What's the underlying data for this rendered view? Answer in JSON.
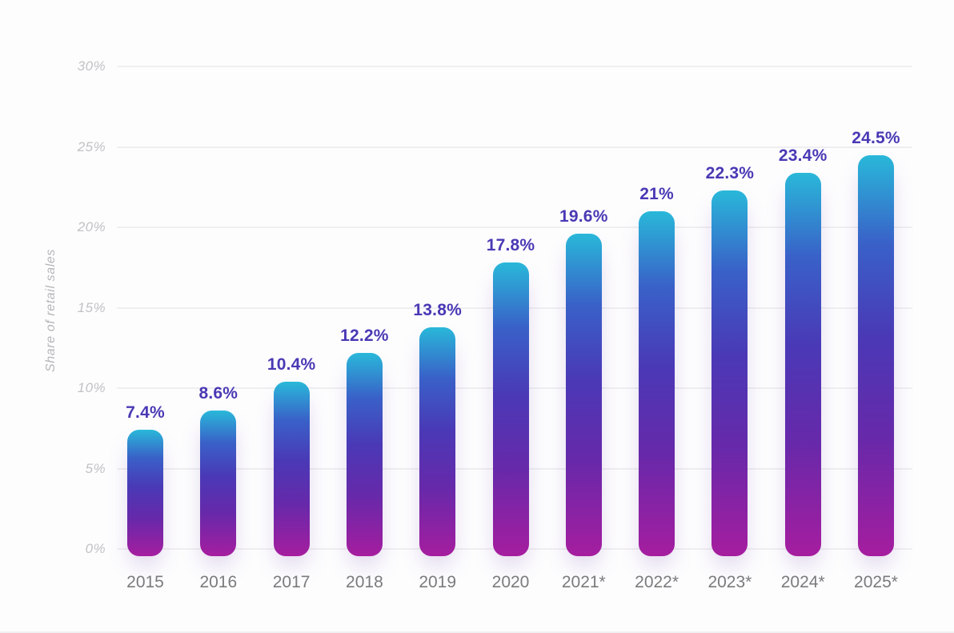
{
  "chart_data": {
    "type": "bar",
    "categories": [
      "2015",
      "2016",
      "2017",
      "2018",
      "2019",
      "2020",
      "2021*",
      "2022*",
      "2023*",
      "2024*",
      "2025*"
    ],
    "values": [
      7.4,
      8.6,
      10.4,
      12.2,
      13.8,
      17.8,
      19.6,
      21,
      22.3,
      23.4,
      24.5
    ],
    "value_labels": [
      "7.4%",
      "8.6%",
      "10.4%",
      "12.2%",
      "13.8%",
      "17.8%",
      "19.6%",
      "21%",
      "22.3%",
      "23.4%",
      "24.5%"
    ],
    "title": "",
    "xlabel": "",
    "ylabel": "Share of retail sales",
    "ylim": [
      0,
      30
    ],
    "ytick_step": 5,
    "ytick_labels": [
      "0%",
      "5%",
      "10%",
      "15%",
      "20%",
      "25%",
      "30%"
    ],
    "grid": true,
    "legend": false,
    "colors": {
      "bar_gradient_top": "#29b8d9",
      "bar_gradient_upper_mid": "#3961c8",
      "bar_gradient_mid": "#4a39b6",
      "bar_gradient_lower_mid": "#6629aa",
      "bar_gradient_bottom": "#a61d9f",
      "value_label": "#4939b4",
      "y_tick_label": "#c2c2c5",
      "x_tick_label": "#7b7b7e",
      "gridline": "#efeff1",
      "background": "#fdfdfe"
    }
  }
}
